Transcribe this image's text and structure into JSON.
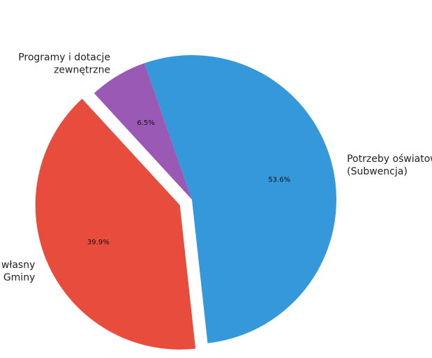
{
  "chart_data": {
    "type": "pie",
    "start_angle_deg": 132.6,
    "direction": "counterclockwise",
    "slices": [
      {
        "label_lines": [
          "Wkład własny",
          "Gminy"
        ],
        "value": 39.9,
        "percent_label": "39.9%",
        "color": "#e74c3c",
        "exploded": true
      },
      {
        "label_lines": [
          "Potrzeby oświatowe",
          "(Subwencja)"
        ],
        "value": 53.6,
        "percent_label": "53.6%",
        "color": "#3498db",
        "exploded": false
      },
      {
        "label_lines": [
          "Programy i dotacje",
          "zewnętrzne"
        ],
        "value": 6.5,
        "percent_label": "6.5%",
        "color": "#9b59b6",
        "exploded": false
      }
    ]
  }
}
